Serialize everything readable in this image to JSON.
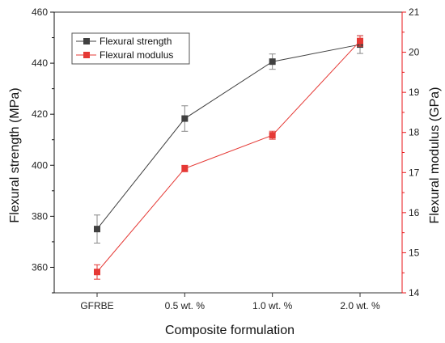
{
  "chart_data": {
    "type": "line",
    "title": "",
    "xlabel": "Composite formulation",
    "categories": [
      "GFRBE",
      "0.5 wt. %",
      "1.0 wt. %",
      "2.0 wt. %"
    ],
    "y_left": {
      "label": "Flexural strength (MPa)",
      "range": [
        350,
        460
      ],
      "ticks": [
        360,
        380,
        400,
        420,
        440,
        460
      ],
      "color": "#111111"
    },
    "y_right": {
      "label": "Flexural modulus (GPa)",
      "range": [
        14,
        21
      ],
      "ticks": [
        14,
        15,
        16,
        17,
        18,
        19,
        20,
        21
      ],
      "color": "#e8171b"
    },
    "series": [
      {
        "name": "Flexural strength",
        "axis": "left",
        "color": "#404040",
        "marker": "square",
        "values": [
          375,
          418.3,
          440.6,
          447.3
        ],
        "errors": [
          5.5,
          5.0,
          3.0,
          3.5
        ]
      },
      {
        "name": "Flexural modulus",
        "axis": "right",
        "color": "#e53935",
        "marker": "square",
        "values": [
          14.52,
          17.1,
          17.93,
          20.28
        ],
        "errors": [
          0.18,
          0.08,
          0.1,
          0.13
        ]
      }
    ],
    "legend": "top-left",
    "grid": false
  }
}
